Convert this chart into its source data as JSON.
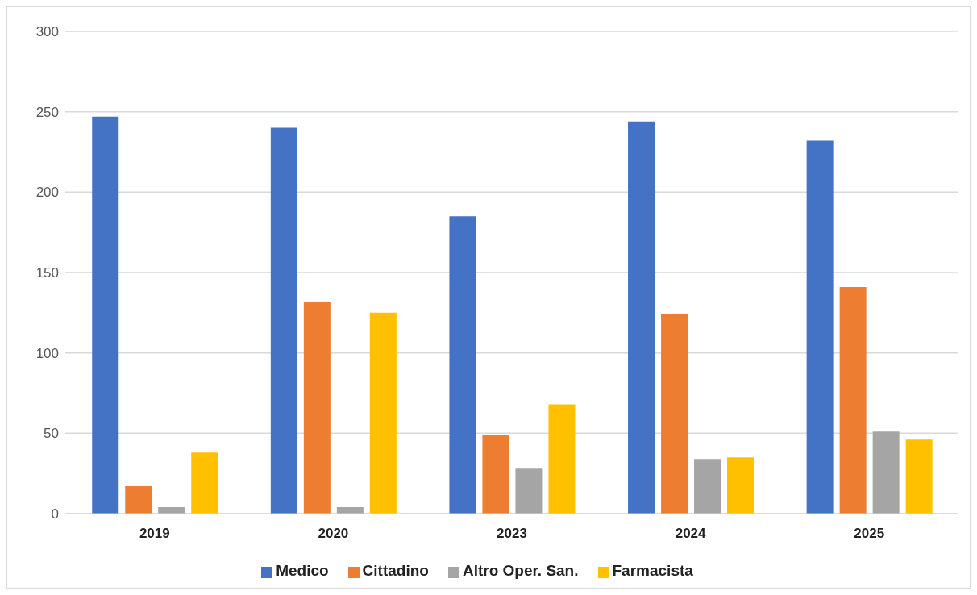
{
  "chart_data": {
    "type": "bar",
    "categories": [
      "2019",
      "2020",
      "2023",
      "2024",
      "2025"
    ],
    "series": [
      {
        "name": "Medico",
        "color": "#4472c4",
        "values": [
          247,
          240,
          185,
          244,
          232
        ]
      },
      {
        "name": "Cittadino",
        "color": "#ed7d31",
        "values": [
          17,
          132,
          49,
          124,
          141
        ]
      },
      {
        "name": "Altro Oper. San.",
        "color": "#a5a5a5",
        "values": [
          4,
          4,
          28,
          34,
          51
        ]
      },
      {
        "name": "Farmacista",
        "color": "#ffc000",
        "values": [
          38,
          125,
          68,
          35,
          46
        ]
      }
    ],
    "ylim": [
      0,
      300
    ],
    "yticks": [
      0,
      50,
      100,
      150,
      200,
      250,
      300
    ],
    "grid": "y",
    "legend": "bottom"
  }
}
